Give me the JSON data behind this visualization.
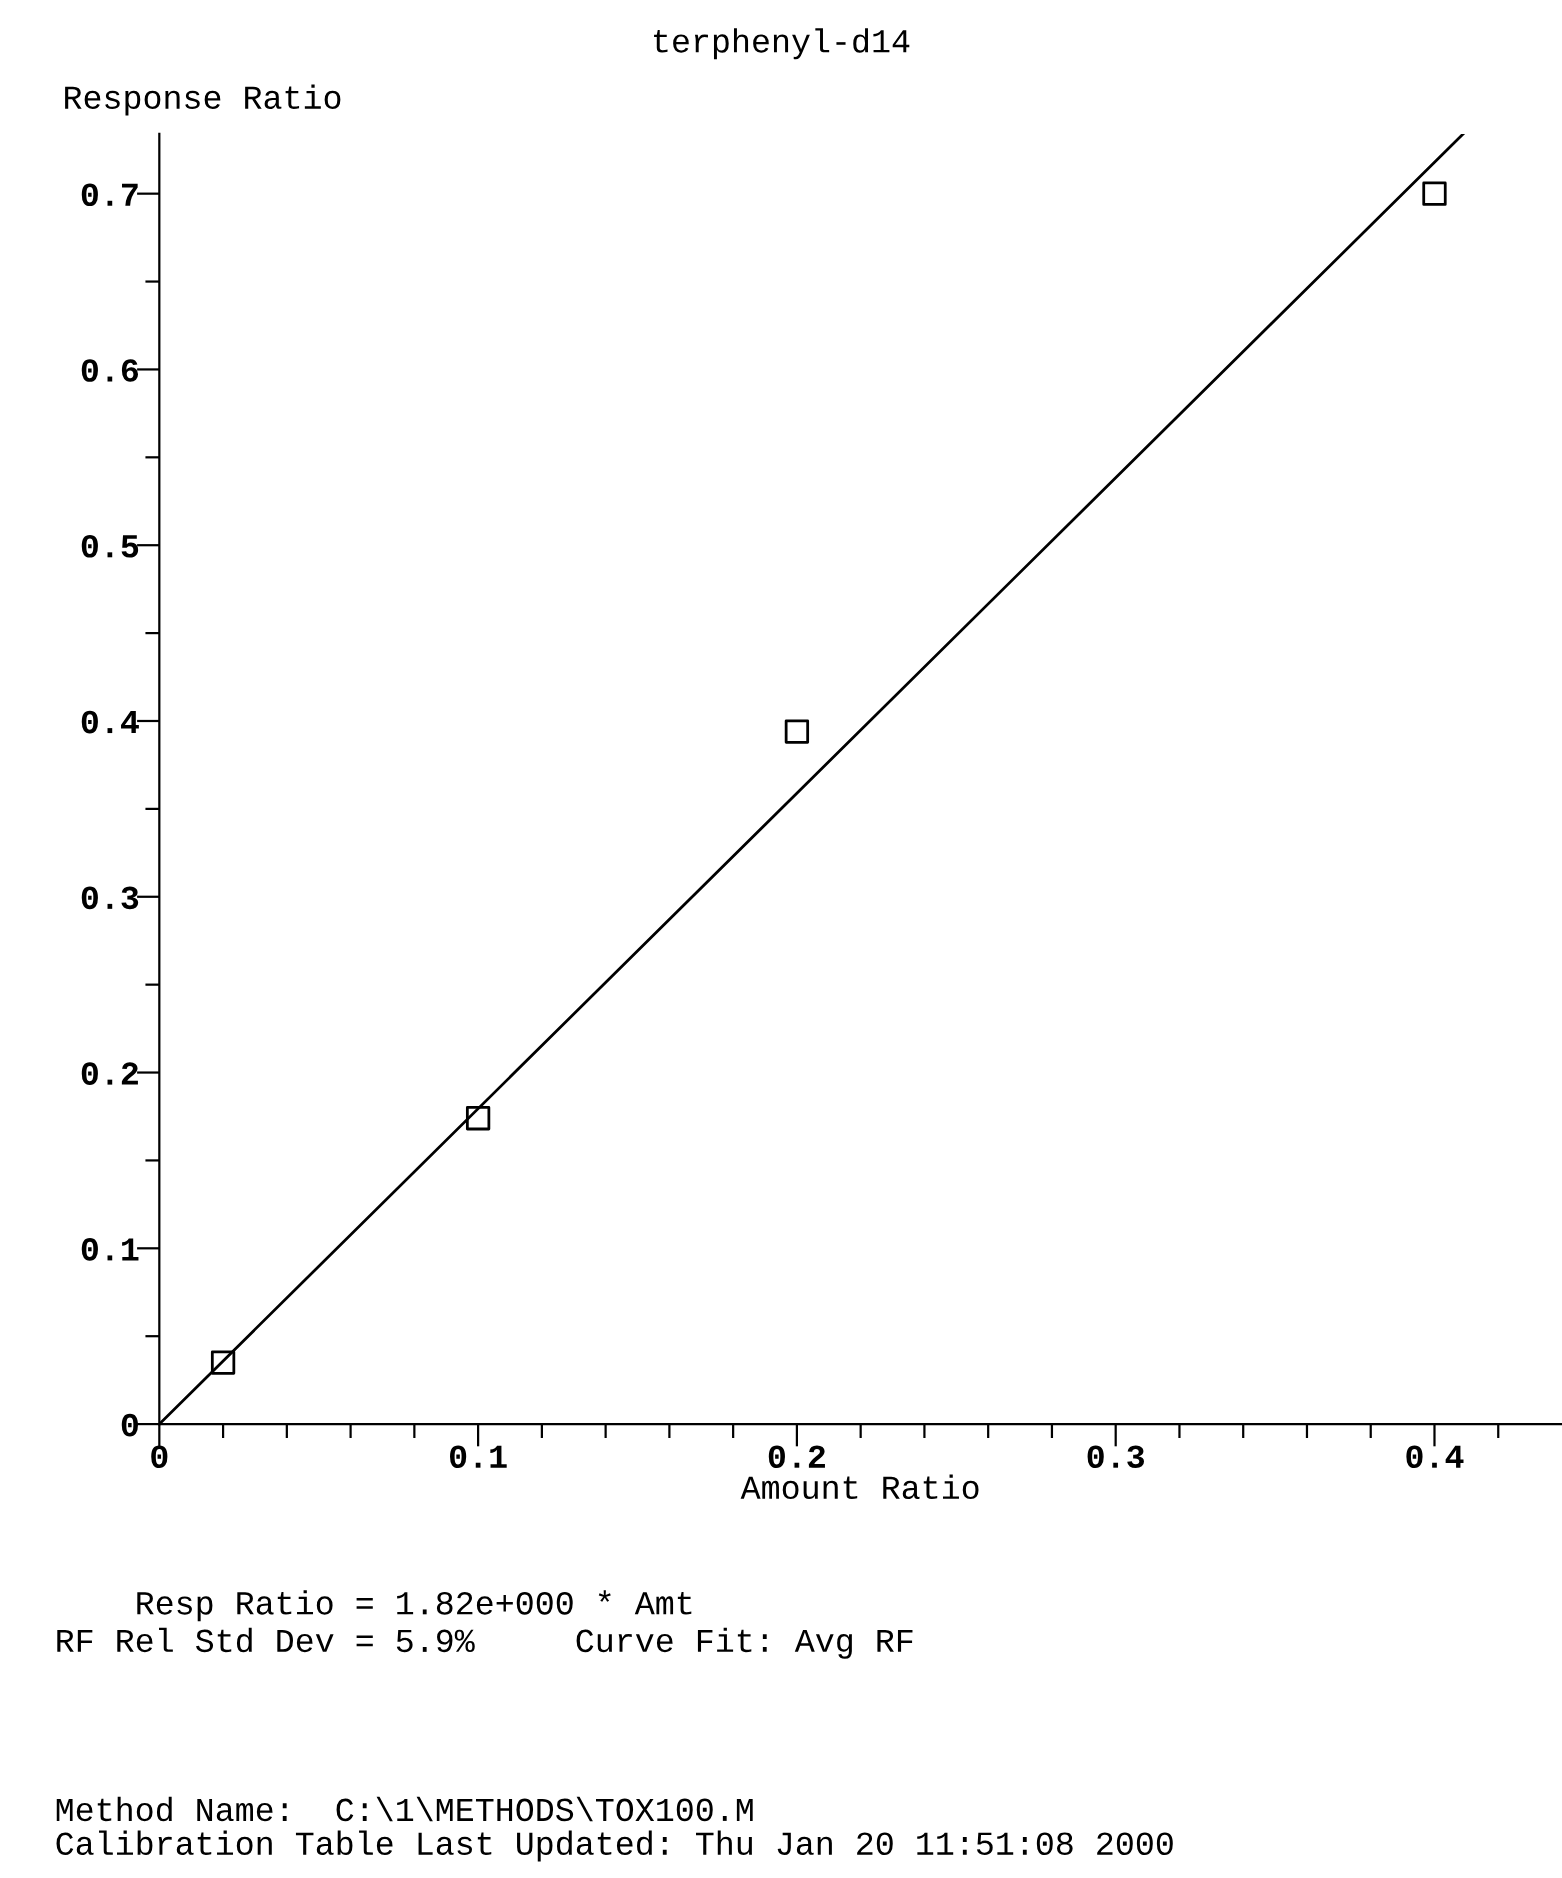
{
  "chart_data": {
    "type": "scatter",
    "title": "terphenyl-d14",
    "ylabel": "Response Ratio",
    "xlabel": "Amount Ratio",
    "series": [
      {
        "color": "#000000",
        "marker": "square",
        "x": [
          0.02,
          0.1,
          0.2,
          0.4
        ],
        "values": [
          0.035,
          0.174,
          0.394,
          0.7
        ]
      },
      {
        "type": "line",
        "color": "#000000",
        "marker": "none",
        "line_style": "solid",
        "x": [
          0,
          0.409
        ],
        "values": [
          0,
          0.734
        ]
      }
    ],
    "xlim": [
      0,
      0.44
    ],
    "ylim": [
      0,
      0.734
    ],
    "xticks": [
      {
        "value": 0,
        "label": "0"
      },
      0.1,
      0.2,
      0.3,
      0.4,
      {
        "value": 0.02,
        "label": null
      },
      {
        "value": 0.04,
        "label": null
      },
      {
        "value": 0.06,
        "label": null
      },
      {
        "value": 0.08,
        "label": null
      },
      {
        "value": 0.12,
        "label": null
      },
      {
        "value": 0.14,
        "label": null
      },
      {
        "value": 0.16,
        "label": null
      },
      {
        "value": 0.18,
        "label": null
      },
      {
        "value": 0.22,
        "label": null
      },
      {
        "value": 0.24,
        "label": null
      },
      {
        "value": 0.26,
        "label": null
      },
      {
        "value": 0.28,
        "label": null
      },
      {
        "value": 0.32,
        "label": null
      },
      {
        "value": 0.34,
        "label": null
      },
      {
        "value": 0.36,
        "label": null
      },
      {
        "value": 0.38,
        "label": null
      },
      {
        "value": 0.42,
        "label": null
      }
    ],
    "yticks": [
      {
        "value": 0,
        "label": "0"
      },
      0.1,
      0.2,
      0.3,
      0.4,
      0.5,
      0.6,
      0.7,
      {
        "value": 0.05,
        "label": null
      },
      {
        "value": 0.15,
        "label": null
      },
      {
        "value": 0.25,
        "label": null
      },
      {
        "value": 0.35,
        "label": null
      },
      {
        "value": 0.45,
        "label": null
      },
      {
        "value": 0.55,
        "label": null
      },
      {
        "value": 0.65,
        "label": null
      }
    ],
    "grid": false,
    "legend": false,
    "annotations": [
      "    Resp Ratio = 1.82e+000 * Amt",
      "RF Rel Std Dev = 5.9%     Curve Fit: Avg RF",
      "Method Name:  C:\\1\\METHODS\\TOX100.M",
      "Calibration Table Last Updated: Thu Jan 20 11:51:08 2000"
    ]
  }
}
